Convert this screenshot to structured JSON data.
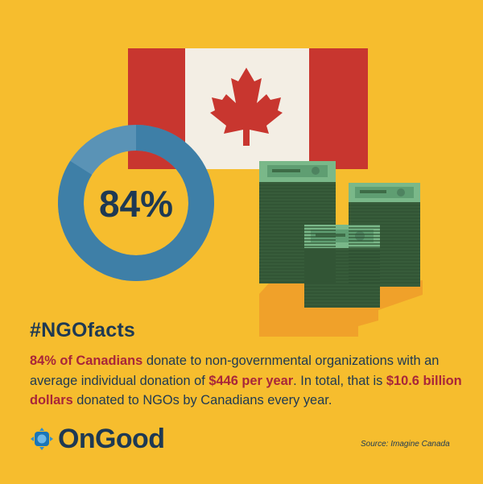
{
  "stat": {
    "value_label": "84%",
    "fraction": 0.84
  },
  "icons": {
    "flag": "canadian-flag-icon",
    "money": "money-stack-icon",
    "donut": "donut-progress-icon",
    "logo": "ongood-logo-icon"
  },
  "text": {
    "hashtag": "#NGOfacts",
    "segments": [
      {
        "t": "84% of Canadians",
        "hl": true
      },
      {
        "t": " donate to non-governmental organizations with an average individual donation of ",
        "hl": false
      },
      {
        "t": "$446 per year",
        "hl": true
      },
      {
        "t": ". In total, that is ",
        "hl": false
      },
      {
        "t": "$10.6 billion dollars",
        "hl": true
      },
      {
        "t": " donated to NGOs by Canadians every year.",
        "hl": false
      }
    ]
  },
  "brand": {
    "name": "OnGood",
    "source": "Source: Imagine Canada"
  },
  "colors": {
    "background": "#F6BD2E",
    "donut_dark": "#3E7FA7",
    "donut_light": "#5A93B6",
    "flag_red": "#C8362F",
    "flag_white": "#F3EEE4",
    "text_dark": "#1E3953",
    "text_highlight": "#A8263A",
    "money_green": "#3C6B3E",
    "bill_green": "#6AB07D"
  }
}
